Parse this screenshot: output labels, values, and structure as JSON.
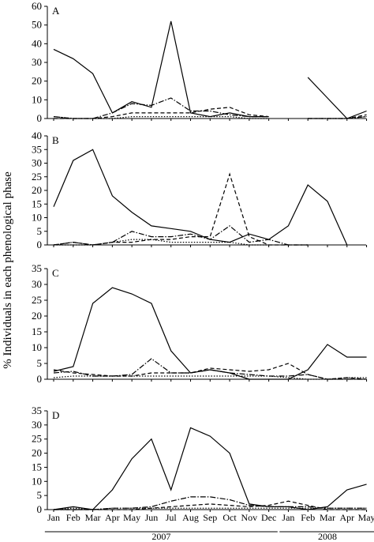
{
  "ylabel": "% Individuals in each phenological phase",
  "months": [
    "Jan",
    "Feb",
    "Mar",
    "Apr",
    "May",
    "Jun",
    "Jul",
    "Aug",
    "Sep",
    "Oct",
    "Nov",
    "Dec",
    "Jan",
    "Feb",
    "Mar",
    "Apr",
    "May"
  ],
  "years": [
    {
      "label": "2007",
      "start": 0,
      "end": 11
    },
    {
      "label": "2008",
      "start": 12,
      "end": 16
    }
  ],
  "chart_data": [
    {
      "type": "line",
      "panel": "A",
      "ylim": [
        0,
        60
      ],
      "yticks": [
        0,
        10,
        20,
        30,
        40,
        50,
        60
      ],
      "series": [
        {
          "style": "solid",
          "values": [
            37,
            32,
            24,
            3,
            9,
            6,
            52,
            3,
            1,
            3,
            1,
            1,
            null,
            22,
            11,
            0,
            4
          ]
        },
        {
          "style": "dashdot",
          "values": [
            1,
            0,
            0,
            3,
            8,
            7,
            11,
            4,
            4,
            2,
            1,
            1,
            null,
            0,
            0,
            0,
            1
          ]
        },
        {
          "style": "dashed",
          "values": [
            0,
            0,
            0,
            1,
            3,
            3,
            3,
            3,
            5,
            6,
            2,
            1,
            null,
            0,
            0,
            0,
            2
          ]
        },
        {
          "style": "dotted",
          "values": [
            1,
            0,
            0,
            0,
            1,
            1,
            1,
            1,
            1,
            1,
            0,
            0,
            null,
            0,
            0,
            0,
            1
          ]
        }
      ]
    },
    {
      "type": "line",
      "panel": "B",
      "ylim": [
        0,
        40
      ],
      "yticks": [
        0,
        5,
        10,
        15,
        20,
        25,
        30,
        35,
        40
      ],
      "series": [
        {
          "style": "solid",
          "values": [
            14,
            31,
            35,
            18,
            12,
            7,
            6,
            5,
            2,
            1,
            4,
            2,
            7,
            22,
            16,
            0,
            null
          ]
        },
        {
          "style": "dashed",
          "values": [
            0,
            1,
            0,
            1,
            1,
            2,
            2,
            3,
            3,
            26,
            3,
            0,
            0,
            0,
            null,
            null,
            null
          ]
        },
        {
          "style": "dashdot",
          "values": [
            0,
            1,
            0,
            1,
            5,
            3,
            3,
            4,
            2,
            7,
            1,
            2,
            0,
            0,
            null,
            null,
            null
          ]
        },
        {
          "style": "dotted",
          "values": [
            0,
            0,
            0,
            1,
            2,
            2,
            1,
            1,
            1,
            1,
            0,
            0,
            null,
            null,
            null,
            null,
            null
          ]
        }
      ]
    },
    {
      "type": "line",
      "panel": "C",
      "ylim": [
        0,
        35
      ],
      "yticks": [
        0,
        5,
        10,
        15,
        20,
        25,
        30,
        35
      ],
      "series": [
        {
          "style": "solid",
          "values": [
            2.5,
            4,
            24,
            29,
            27,
            24,
            9,
            2,
            3,
            2,
            0,
            0,
            0,
            3,
            11,
            7,
            7
          ]
        },
        {
          "style": "dashed",
          "values": [
            3,
            2,
            1.5,
            1,
            1,
            2,
            2,
            2,
            3.5,
            3,
            2.5,
            3,
            5,
            1.5,
            0,
            0.5,
            0
          ]
        },
        {
          "style": "dashdot",
          "values": [
            2,
            2.5,
            1,
            1,
            1.5,
            6.5,
            2,
            2,
            3,
            2,
            1.5,
            1,
            1,
            1.5,
            0,
            0,
            0
          ]
        },
        {
          "style": "dotted",
          "values": [
            0.5,
            1,
            1,
            1,
            1,
            1,
            1,
            1,
            1,
            1,
            1,
            1,
            0.5,
            0,
            0,
            0.5,
            0.5
          ]
        }
      ]
    },
    {
      "type": "line",
      "panel": "D",
      "ylim": [
        0,
        35
      ],
      "yticks": [
        0,
        5,
        10,
        15,
        20,
        25,
        30,
        35
      ],
      "series": [
        {
          "style": "solid",
          "values": [
            0,
            1,
            0,
            7,
            18,
            25,
            7,
            29,
            26,
            20,
            2,
            1,
            1,
            0,
            1,
            7,
            9
          ]
        },
        {
          "style": "dashdot",
          "values": [
            0,
            0,
            0,
            0.5,
            0.5,
            1,
            3,
            4.5,
            4.5,
            3.5,
            1.5,
            1,
            1,
            1,
            0.5,
            0.5,
            0.5
          ]
        },
        {
          "style": "dashed",
          "values": [
            0,
            0,
            0,
            0,
            0,
            0.5,
            1,
            1.5,
            2,
            1.5,
            1,
            1.5,
            3,
            1.5,
            0,
            0,
            0
          ]
        },
        {
          "style": "dotted",
          "values": [
            0,
            0.5,
            0,
            0.5,
            0.5,
            0.5,
            0.5,
            0.5,
            0.5,
            0.5,
            0.5,
            0.5,
            0.5,
            0.5,
            0.5,
            0.5,
            0.5
          ]
        }
      ]
    }
  ]
}
